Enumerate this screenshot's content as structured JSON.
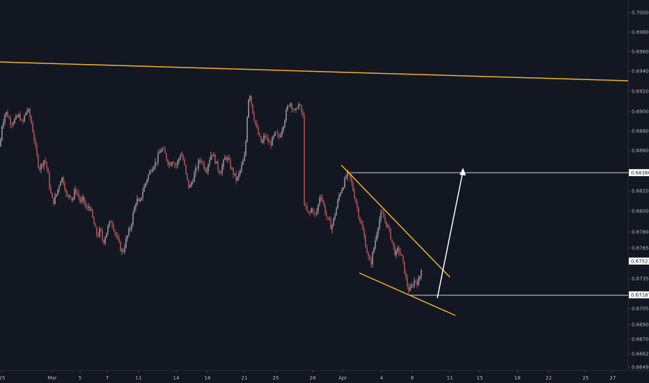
{
  "chart_data": {
    "type": "candlestick",
    "y_axis": {
      "ticks": [
        "0.70000",
        "0.69800",
        "0.69600",
        "0.69400",
        "0.69200",
        "0.69000",
        "0.68800",
        "0.68600",
        "0.68200",
        "0.68000",
        "0.67800",
        "0.67650",
        "0.67350",
        "0.67050",
        "0.66900",
        "0.66700",
        "0.66620",
        "0.66490"
      ],
      "tick_values": [
        0.7,
        0.698,
        0.696,
        0.694,
        0.692,
        0.69,
        0.688,
        0.686,
        0.682,
        0.68,
        0.678,
        0.6765,
        0.6735,
        0.6705,
        0.669,
        0.667,
        0.6662,
        0.6649
      ],
      "ylim": [
        0.6648,
        0.7001
      ],
      "side": "right"
    },
    "x_axis": {
      "labels": [
        "25",
        "Mar",
        "5",
        "7",
        "11",
        "14",
        "18",
        "21",
        "25",
        "28",
        "Apr",
        "4",
        "8",
        "11",
        "15",
        "18",
        "22",
        "25",
        "27"
      ]
    },
    "price_tags": [
      {
        "label": "0.68380",
        "value": 0.6838,
        "color": "#ffffff"
      },
      {
        "label": "0.67521",
        "value": 0.67521,
        "color": "#ffffff"
      },
      {
        "label": "0.67187",
        "value": 0.67187,
        "color": "#ffffff"
      }
    ],
    "price_path": [
      [
        0,
        0.6864
      ],
      [
        3,
        0.6886
      ],
      [
        8,
        0.69
      ],
      [
        12,
        0.6894
      ],
      [
        16,
        0.6888
      ],
      [
        22,
        0.6892
      ],
      [
        28,
        0.6896
      ],
      [
        32,
        0.6886
      ],
      [
        36,
        0.6898
      ],
      [
        40,
        0.6902
      ],
      [
        44,
        0.6892
      ],
      [
        48,
        0.6876
      ],
      [
        52,
        0.6858
      ],
      [
        56,
        0.6842
      ],
      [
        60,
        0.6846
      ],
      [
        64,
        0.6852
      ],
      [
        68,
        0.684
      ],
      [
        72,
        0.682
      ],
      [
        76,
        0.6808
      ],
      [
        80,
        0.6814
      ],
      [
        84,
        0.6824
      ],
      [
        88,
        0.6834
      ],
      [
        92,
        0.6828
      ],
      [
        96,
        0.6812
      ],
      [
        100,
        0.6818
      ],
      [
        104,
        0.681
      ],
      [
        108,
        0.6822
      ],
      [
        112,
        0.6816
      ],
      [
        116,
        0.6808
      ],
      [
        120,
        0.6812
      ],
      [
        124,
        0.68
      ],
      [
        128,
        0.6806
      ],
      [
        132,
        0.6796
      ],
      [
        136,
        0.6784
      ],
      [
        140,
        0.6776
      ],
      [
        144,
        0.6782
      ],
      [
        148,
        0.677
      ],
      [
        152,
        0.6778
      ],
      [
        156,
        0.6786
      ],
      [
        160,
        0.6792
      ],
      [
        164,
        0.6782
      ],
      [
        168,
        0.6774
      ],
      [
        172,
        0.6766
      ],
      [
        176,
        0.676
      ],
      [
        180,
        0.677
      ],
      [
        184,
        0.6778
      ],
      [
        188,
        0.6786
      ],
      [
        192,
        0.68
      ],
      [
        196,
        0.6812
      ],
      [
        200,
        0.6806
      ],
      [
        204,
        0.6818
      ],
      [
        208,
        0.6826
      ],
      [
        212,
        0.6834
      ],
      [
        216,
        0.684
      ],
      [
        220,
        0.6846
      ],
      [
        224,
        0.6848
      ],
      [
        228,
        0.6856
      ],
      [
        232,
        0.6862
      ],
      [
        236,
        0.6858
      ],
      [
        240,
        0.685
      ],
      [
        244,
        0.6846
      ],
      [
        248,
        0.6852
      ],
      [
        252,
        0.6844
      ],
      [
        256,
        0.685
      ],
      [
        260,
        0.6858
      ],
      [
        264,
        0.6848
      ],
      [
        268,
        0.6832
      ],
      [
        272,
        0.6822
      ],
      [
        276,
        0.683
      ],
      [
        280,
        0.6838
      ],
      [
        284,
        0.6846
      ],
      [
        288,
        0.6852
      ],
      [
        292,
        0.6846
      ],
      [
        296,
        0.684
      ],
      [
        300,
        0.685
      ],
      [
        304,
        0.6858
      ],
      [
        308,
        0.6852
      ],
      [
        312,
        0.6844
      ],
      [
        316,
        0.6838
      ],
      [
        320,
        0.6846
      ],
      [
        324,
        0.6854
      ],
      [
        328,
        0.685
      ],
      [
        332,
        0.6842
      ],
      [
        336,
        0.6836
      ],
      [
        340,
        0.683
      ],
      [
        344,
        0.6838
      ],
      [
        348,
        0.6846
      ],
      [
        352,
        0.6856
      ],
      [
        355,
        0.6896
      ],
      [
        358,
        0.6922
      ],
      [
        361,
        0.6908
      ],
      [
        364,
        0.6896
      ],
      [
        368,
        0.6884
      ],
      [
        372,
        0.6874
      ],
      [
        376,
        0.6866
      ],
      [
        380,
        0.6876
      ],
      [
        384,
        0.687
      ],
      [
        388,
        0.6866
      ],
      [
        392,
        0.6872
      ],
      [
        396,
        0.6878
      ],
      [
        400,
        0.6872
      ],
      [
        404,
        0.688
      ],
      [
        408,
        0.689
      ],
      [
        412,
        0.6902
      ],
      [
        416,
        0.691
      ],
      [
        420,
        0.6904
      ],
      [
        424,
        0.6898
      ],
      [
        428,
        0.6908
      ],
      [
        432,
        0.6902
      ],
      [
        436,
        0.6892
      ],
      [
        437,
        0.6808
      ],
      [
        440,
        0.68
      ],
      [
        444,
        0.6796
      ],
      [
        448,
        0.6804
      ],
      [
        452,
        0.6794
      ],
      [
        456,
        0.6802
      ],
      [
        460,
        0.6818
      ],
      [
        464,
        0.6808
      ],
      [
        468,
        0.6796
      ],
      [
        472,
        0.679
      ],
      [
        476,
        0.6784
      ],
      [
        480,
        0.6794
      ],
      [
        484,
        0.6806
      ],
      [
        488,
        0.6818
      ],
      [
        492,
        0.6824
      ],
      [
        496,
        0.6832
      ],
      [
        500,
        0.6838
      ],
      [
        504,
        0.683
      ],
      [
        508,
        0.6818
      ],
      [
        512,
        0.6806
      ],
      [
        516,
        0.6794
      ],
      [
        520,
        0.6784
      ],
      [
        524,
        0.6772
      ],
      [
        528,
        0.6758
      ],
      [
        532,
        0.6748
      ],
      [
        536,
        0.6762
      ],
      [
        540,
        0.6776
      ],
      [
        544,
        0.679
      ],
      [
        548,
        0.6798
      ],
      [
        552,
        0.6792
      ],
      [
        556,
        0.6786
      ],
      [
        560,
        0.6778
      ],
      [
        564,
        0.6768
      ],
      [
        568,
        0.6758
      ],
      [
        572,
        0.6764
      ],
      [
        576,
        0.6758
      ],
      [
        580,
        0.6746
      ],
      [
        584,
        0.673
      ],
      [
        588,
        0.6722
      ],
      [
        592,
        0.6728
      ],
      [
        596,
        0.6734
      ],
      [
        600,
        0.673
      ],
      [
        604,
        0.674
      ],
      [
        606,
        0.6752
      ]
    ]
  }
}
